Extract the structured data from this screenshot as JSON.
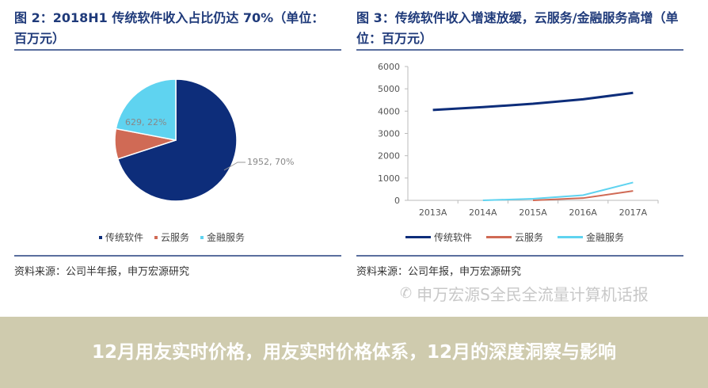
{
  "overlay_title": "12月用友实时价格，用友实时价格体系，12月的深度洞察与影响",
  "watermark": "申万宏源S全民全流量计算机话报",
  "chart_data": [
    {
      "type": "pie",
      "title": "图 2：2018H1 传统软件收入占比仍达 70%（单位：百万元）",
      "source": "资料来源：公司半年报，申万宏源研究",
      "slices": [
        {
          "name": "传统软件",
          "value": 1952,
          "percent": 70,
          "label": "1952, 70%",
          "color": "#0d2d7a"
        },
        {
          "name": "云服务",
          "value": 228,
          "percent": 8,
          "label": "",
          "color": "#d06a55"
        },
        {
          "name": "金融服务",
          "value": 629,
          "percent": 22,
          "label": "629, 22%",
          "color": "#5fd3f0"
        }
      ],
      "legend": "bottom"
    },
    {
      "type": "line",
      "title": "图 3：传统软件收入增速放缓，云服务/金融服务高增（单位：百万元）",
      "source": "资料来源：公司年报，申万宏源研究",
      "categories": [
        "2013A",
        "2014A",
        "2015A",
        "2016A",
        "2017A"
      ],
      "ylim": [
        0,
        6000
      ],
      "yticks": [
        "0",
        "1000",
        "2000",
        "3000",
        "4000",
        "5000",
        "6000"
      ],
      "series": [
        {
          "name": "传统软件",
          "color": "#0d2d7a",
          "values": [
            4050,
            4180,
            4330,
            4530,
            4820
          ]
        },
        {
          "name": "云服务",
          "color": "#d06a55",
          "values": [
            null,
            null,
            0,
            100,
            420
          ]
        },
        {
          "name": "金融服务",
          "color": "#5fd3f0",
          "values": [
            null,
            0,
            70,
            230,
            800
          ]
        }
      ],
      "legend": "bottom",
      "grid": false
    }
  ]
}
